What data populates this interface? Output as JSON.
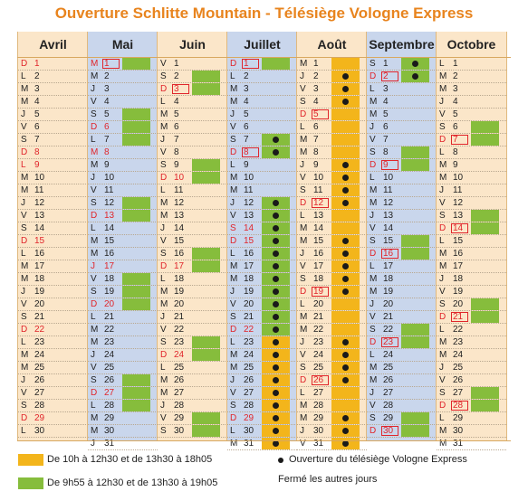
{
  "title": "Ouverture Schlitte Mountain  - Télésiège Vologne Express",
  "colors": {
    "orange": "#f3b51b",
    "green": "#86bd3c",
    "red": "#e0262b",
    "beige": "#fbe6c9",
    "blue": "#c9d6ec",
    "title": "#e8841e"
  },
  "months": [
    {
      "name": "Avril",
      "bg": "beige",
      "letters": [
        "D",
        "L",
        "M",
        "M",
        "J",
        "V",
        "S",
        "D",
        "L",
        "M",
        "M",
        "J",
        "V",
        "S",
        "D",
        "L",
        "M",
        "M",
        "J",
        "V",
        "S",
        "D",
        "L",
        "M",
        "M",
        "J",
        "V",
        "S",
        "D",
        "L"
      ],
      "red": [
        1,
        8,
        9,
        15,
        22,
        29
      ],
      "redbox": [],
      "green": [],
      "orange": [],
      "dots": []
    },
    {
      "name": "Mai",
      "bg": "blue",
      "letters": [
        "M",
        "M",
        "J",
        "V",
        "S",
        "D",
        "L",
        "M",
        "M",
        "J",
        "V",
        "S",
        "D",
        "L",
        "M",
        "M",
        "J",
        "V",
        "S",
        "D",
        "L",
        "M",
        "M",
        "J",
        "V",
        "S",
        "D",
        "L",
        "M",
        "M",
        "J"
      ],
      "red": [
        1,
        6,
        8,
        13,
        17,
        20,
        27
      ],
      "redbox": [
        1
      ],
      "green": [
        1,
        5,
        6,
        7,
        12,
        13,
        18,
        19,
        20,
        26,
        27,
        28
      ],
      "orange": [],
      "dots": []
    },
    {
      "name": "Juin",
      "bg": "beige",
      "letters": [
        "V",
        "S",
        "D",
        "L",
        "M",
        "M",
        "J",
        "V",
        "S",
        "D",
        "L",
        "M",
        "M",
        "J",
        "V",
        "S",
        "D",
        "L",
        "M",
        "M",
        "J",
        "V",
        "S",
        "D",
        "L",
        "M",
        "M",
        "J",
        "V",
        "S"
      ],
      "red": [
        3,
        10,
        17,
        24
      ],
      "redbox": [
        3
      ],
      "green": [
        2,
        3,
        9,
        10,
        16,
        17,
        23,
        24,
        29,
        30
      ],
      "orange": [],
      "dots": []
    },
    {
      "name": "Juillet",
      "bg": "blue",
      "letters": [
        "D",
        "L",
        "M",
        "M",
        "J",
        "V",
        "S",
        "D",
        "L",
        "M",
        "M",
        "J",
        "V",
        "S",
        "D",
        "L",
        "M",
        "M",
        "J",
        "V",
        "S",
        "D",
        "L",
        "M",
        "M",
        "J",
        "V",
        "S",
        "D",
        "L",
        "M"
      ],
      "red": [
        1,
        8,
        14,
        15,
        22,
        29
      ],
      "redbox": [
        1,
        8
      ],
      "green": [
        1,
        7,
        8,
        12,
        13,
        14,
        15,
        16,
        17,
        18,
        19,
        20,
        21,
        22
      ],
      "orange": [
        23,
        24,
        25,
        26,
        27,
        28,
        29,
        30,
        31
      ],
      "dots": [
        7,
        8,
        12,
        13,
        14,
        15,
        16,
        17,
        18,
        19,
        20,
        21,
        22,
        23,
        24,
        25,
        26,
        27,
        28,
        29,
        30,
        31
      ]
    },
    {
      "name": "Août",
      "bg": "beige",
      "letters": [
        "M",
        "J",
        "V",
        "S",
        "D",
        "L",
        "M",
        "M",
        "J",
        "V",
        "S",
        "D",
        "L",
        "M",
        "M",
        "J",
        "V",
        "S",
        "D",
        "L",
        "M",
        "M",
        "J",
        "V",
        "S",
        "D",
        "L",
        "M",
        "M",
        "J",
        "V"
      ],
      "red": [
        5,
        12,
        19,
        26
      ],
      "redbox": [
        5,
        12,
        19,
        26
      ],
      "green": [],
      "orange": [
        1,
        2,
        3,
        4,
        5,
        6,
        7,
        8,
        9,
        10,
        11,
        12,
        13,
        14,
        15,
        16,
        17,
        18,
        19,
        20,
        21,
        22,
        23,
        24,
        25,
        26,
        27,
        28,
        29,
        30,
        31
      ],
      "dots": [
        2,
        3,
        4,
        9,
        10,
        11,
        12,
        15,
        16,
        17,
        18,
        19,
        23,
        24,
        25,
        26,
        29,
        30,
        31
      ]
    },
    {
      "name": "Septembre",
      "bg": "blue",
      "letters": [
        "S",
        "D",
        "L",
        "M",
        "M",
        "J",
        "V",
        "S",
        "D",
        "L",
        "M",
        "M",
        "J",
        "V",
        "S",
        "D",
        "L",
        "M",
        "M",
        "J",
        "V",
        "S",
        "D",
        "L",
        "M",
        "M",
        "J",
        "V",
        "S",
        "D"
      ],
      "red": [
        2,
        9,
        16,
        23,
        30
      ],
      "redbox": [
        2,
        9,
        16,
        23,
        30
      ],
      "green": [
        1,
        2,
        8,
        9,
        15,
        16,
        22,
        23,
        29,
        30
      ],
      "orange": [],
      "dots": [
        1,
        2
      ]
    },
    {
      "name": "Octobre",
      "bg": "beige",
      "letters": [
        "L",
        "M",
        "M",
        "J",
        "V",
        "S",
        "D",
        "L",
        "M",
        "M",
        "J",
        "V",
        "S",
        "D",
        "L",
        "M",
        "M",
        "J",
        "V",
        "S",
        "D",
        "L",
        "M",
        "M",
        "J",
        "V",
        "S",
        "D",
        "L",
        "M",
        "M"
      ],
      "red": [
        7,
        14,
        21,
        28
      ],
      "redbox": [
        7,
        14,
        21,
        28
      ],
      "green": [
        6,
        7,
        13,
        14,
        20,
        21,
        27,
        28
      ],
      "orange": [],
      "dots": []
    }
  ],
  "legend": {
    "orange_label": "De 10h à 12h30 et de 13h30 à 18h05",
    "green_label": "De 9h55 à 12h30 et de 13h30 à 19h05",
    "dot_label": "Ouverture du télésiège Vologne Express",
    "closed_label": "Fermé les autres jours"
  }
}
